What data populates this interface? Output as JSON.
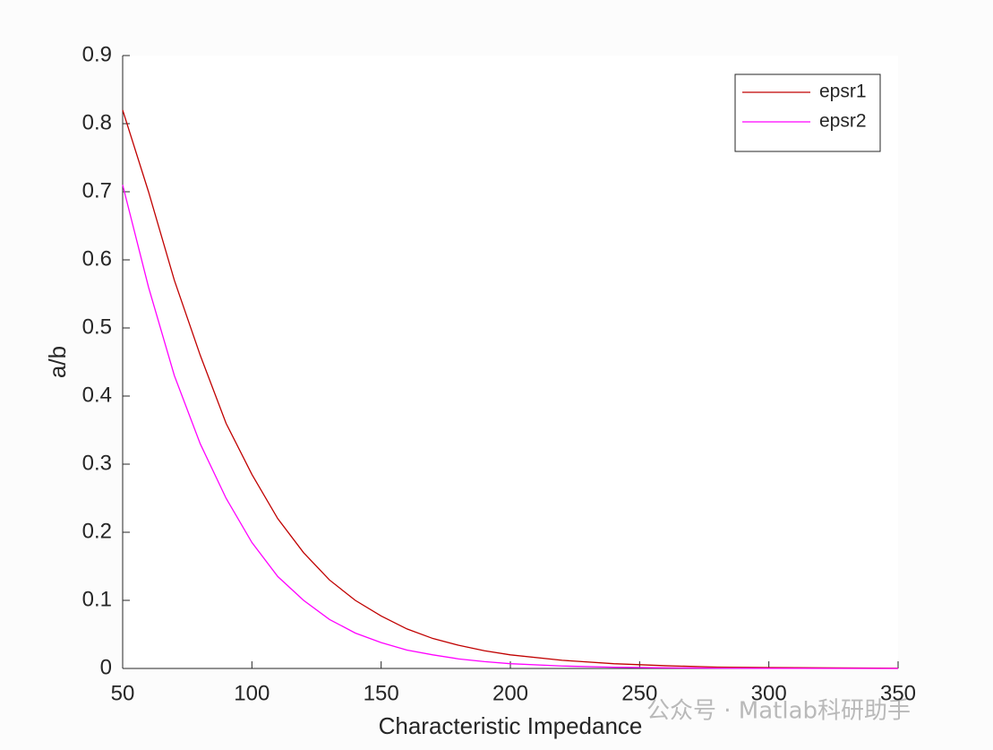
{
  "chart_data": {
    "type": "line",
    "xlabel": "Characteristic Impedance",
    "ylabel": "a/b",
    "x": [
      50,
      60,
      70,
      80,
      90,
      100,
      110,
      120,
      130,
      140,
      150,
      160,
      170,
      180,
      190,
      200,
      220,
      240,
      260,
      280,
      300,
      350
    ],
    "series": [
      {
        "name": "epsr1",
        "color": "#c00000",
        "values": [
          0.82,
          0.7,
          0.57,
          0.46,
          0.36,
          0.285,
          0.22,
          0.17,
          0.13,
          0.1,
          0.077,
          0.058,
          0.044,
          0.034,
          0.026,
          0.02,
          0.012,
          0.007,
          0.004,
          0.002,
          0.0013,
          0.0003
        ]
      },
      {
        "name": "epsr2",
        "color": "#ff00ff",
        "values": [
          0.71,
          0.56,
          0.43,
          0.33,
          0.25,
          0.185,
          0.135,
          0.1,
          0.072,
          0.052,
          0.038,
          0.027,
          0.02,
          0.014,
          0.01,
          0.007,
          0.0036,
          0.0018,
          0.0009,
          0.0005,
          0.0002,
          3e-05
        ]
      }
    ],
    "xlim": [
      50,
      350
    ],
    "xticks": [
      50,
      100,
      150,
      200,
      250,
      300,
      350
    ],
    "ylim": [
      0,
      0.9
    ],
    "yticks": [
      0,
      0.1,
      0.2,
      0.3,
      0.4,
      0.5,
      0.6,
      0.7,
      0.8,
      0.9
    ],
    "legend": "upper-right",
    "grid": false,
    "watermark": "公众号 · Matlab科研助手"
  }
}
